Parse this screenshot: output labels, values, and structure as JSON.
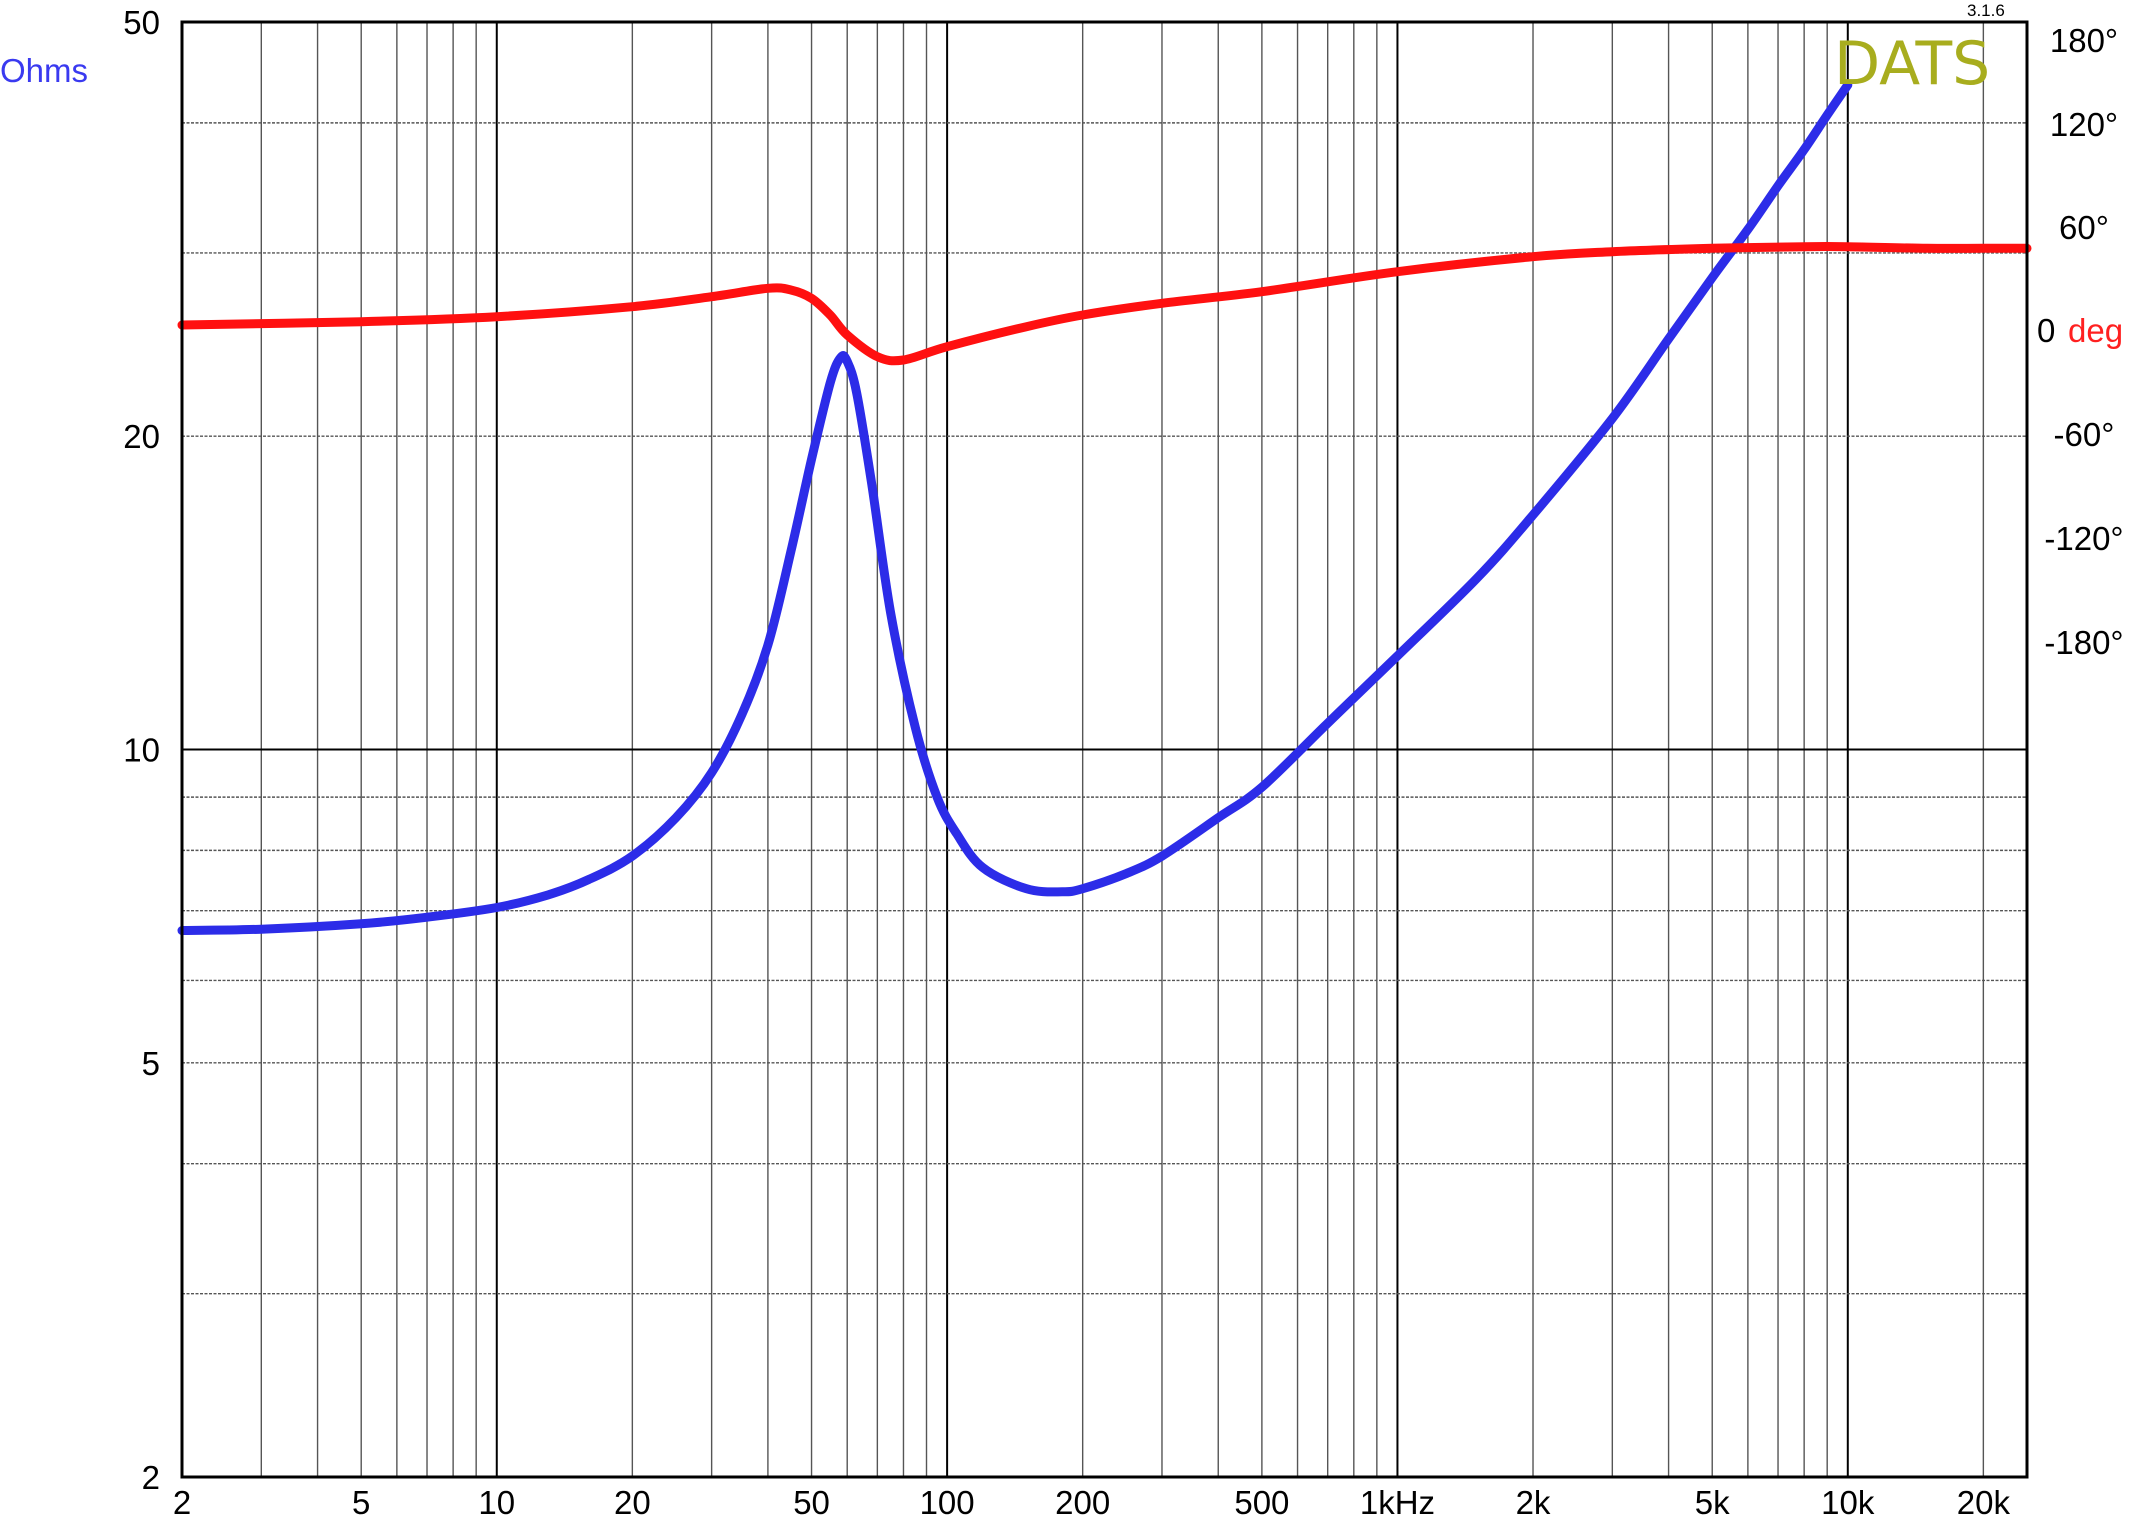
{
  "brand": {
    "name": "DATS",
    "version": "3.1.6",
    "color": "#a8ad1e"
  },
  "chart_data": {
    "type": "line",
    "xscale": "log",
    "xlim": [
      2,
      25000
    ],
    "x_ticks": [
      {
        "value": 2,
        "label": "2"
      },
      {
        "value": 5,
        "label": "5"
      },
      {
        "value": 10,
        "label": "10"
      },
      {
        "value": 20,
        "label": "20"
      },
      {
        "value": 50,
        "label": "50"
      },
      {
        "value": 100,
        "label": "100"
      },
      {
        "value": 200,
        "label": "200"
      },
      {
        "value": 500,
        "label": "500"
      },
      {
        "value": 1000,
        "label": "1kHz"
      },
      {
        "value": 2000,
        "label": "2k"
      },
      {
        "value": 5000,
        "label": "5k"
      },
      {
        "value": 10000,
        "label": "10k"
      },
      {
        "value": 20000,
        "label": "20k"
      }
    ],
    "y_left": {
      "label": "Ohms",
      "scale": "log",
      "lim": [
        2,
        50
      ],
      "ticks": [
        {
          "value": 2,
          "label": "2"
        },
        {
          "value": 5,
          "label": "5"
        },
        {
          "value": 10,
          "label": "10"
        },
        {
          "value": 20,
          "label": "20"
        },
        {
          "value": 50,
          "label": "50"
        }
      ]
    },
    "y_right": {
      "label_value": "0",
      "label_unit": "deg",
      "ticks": [
        {
          "value": 180,
          "label": "180°"
        },
        {
          "value": 120,
          "label": "120°"
        },
        {
          "value": 60,
          "label": "60°"
        },
        {
          "value": -60,
          "label": "-60°"
        },
        {
          "value": -120,
          "label": "-120°"
        },
        {
          "value": -180,
          "label": "-180°"
        }
      ]
    },
    "grid": true,
    "series": [
      {
        "key": "impedance",
        "axis": "left",
        "color": "#2c2ce8",
        "x": [
          2,
          3,
          5,
          7,
          10,
          13,
          16,
          20,
          25,
          30,
          35,
          40,
          45,
          50,
          55,
          58,
          60,
          63,
          68,
          75,
          85,
          95,
          105,
          120,
          150,
          180,
          200,
          250,
          300,
          400,
          500,
          700,
          1000,
          1500,
          2000,
          3000,
          4000,
          5000,
          6000,
          7000,
          8000,
          9000,
          10000
        ],
        "y": [
          6.7,
          6.72,
          6.8,
          6.9,
          7.05,
          7.25,
          7.5,
          7.9,
          8.6,
          9.5,
          10.8,
          12.6,
          15.5,
          19.0,
          22.5,
          23.8,
          23.6,
          22.0,
          18.0,
          13.5,
          10.5,
          9.0,
          8.3,
          7.7,
          7.35,
          7.3,
          7.35,
          7.6,
          7.9,
          8.6,
          9.2,
          10.6,
          12.3,
          14.6,
          16.8,
          20.8,
          24.8,
          28.4,
          31.6,
          34.8,
          37.7,
          40.7,
          43.5
        ]
      },
      {
        "key": "phase",
        "axis": "right",
        "color": "#ff1010",
        "x": [
          2,
          5,
          10,
          20,
          30,
          40,
          45,
          50,
          55,
          60,
          70,
          80,
          100,
          150,
          200,
          300,
          500,
          1000,
          2000,
          3000,
          5000,
          8000,
          10000,
          15000,
          20000,
          25000
        ],
        "y": [
          0,
          2,
          5,
          11,
          17,
          22,
          21,
          16,
          6,
          -6,
          -19,
          -21,
          -13,
          -1,
          6,
          13,
          20,
          32,
          41,
          44,
          46,
          47,
          47,
          46,
          46,
          46
        ]
      }
    ]
  }
}
